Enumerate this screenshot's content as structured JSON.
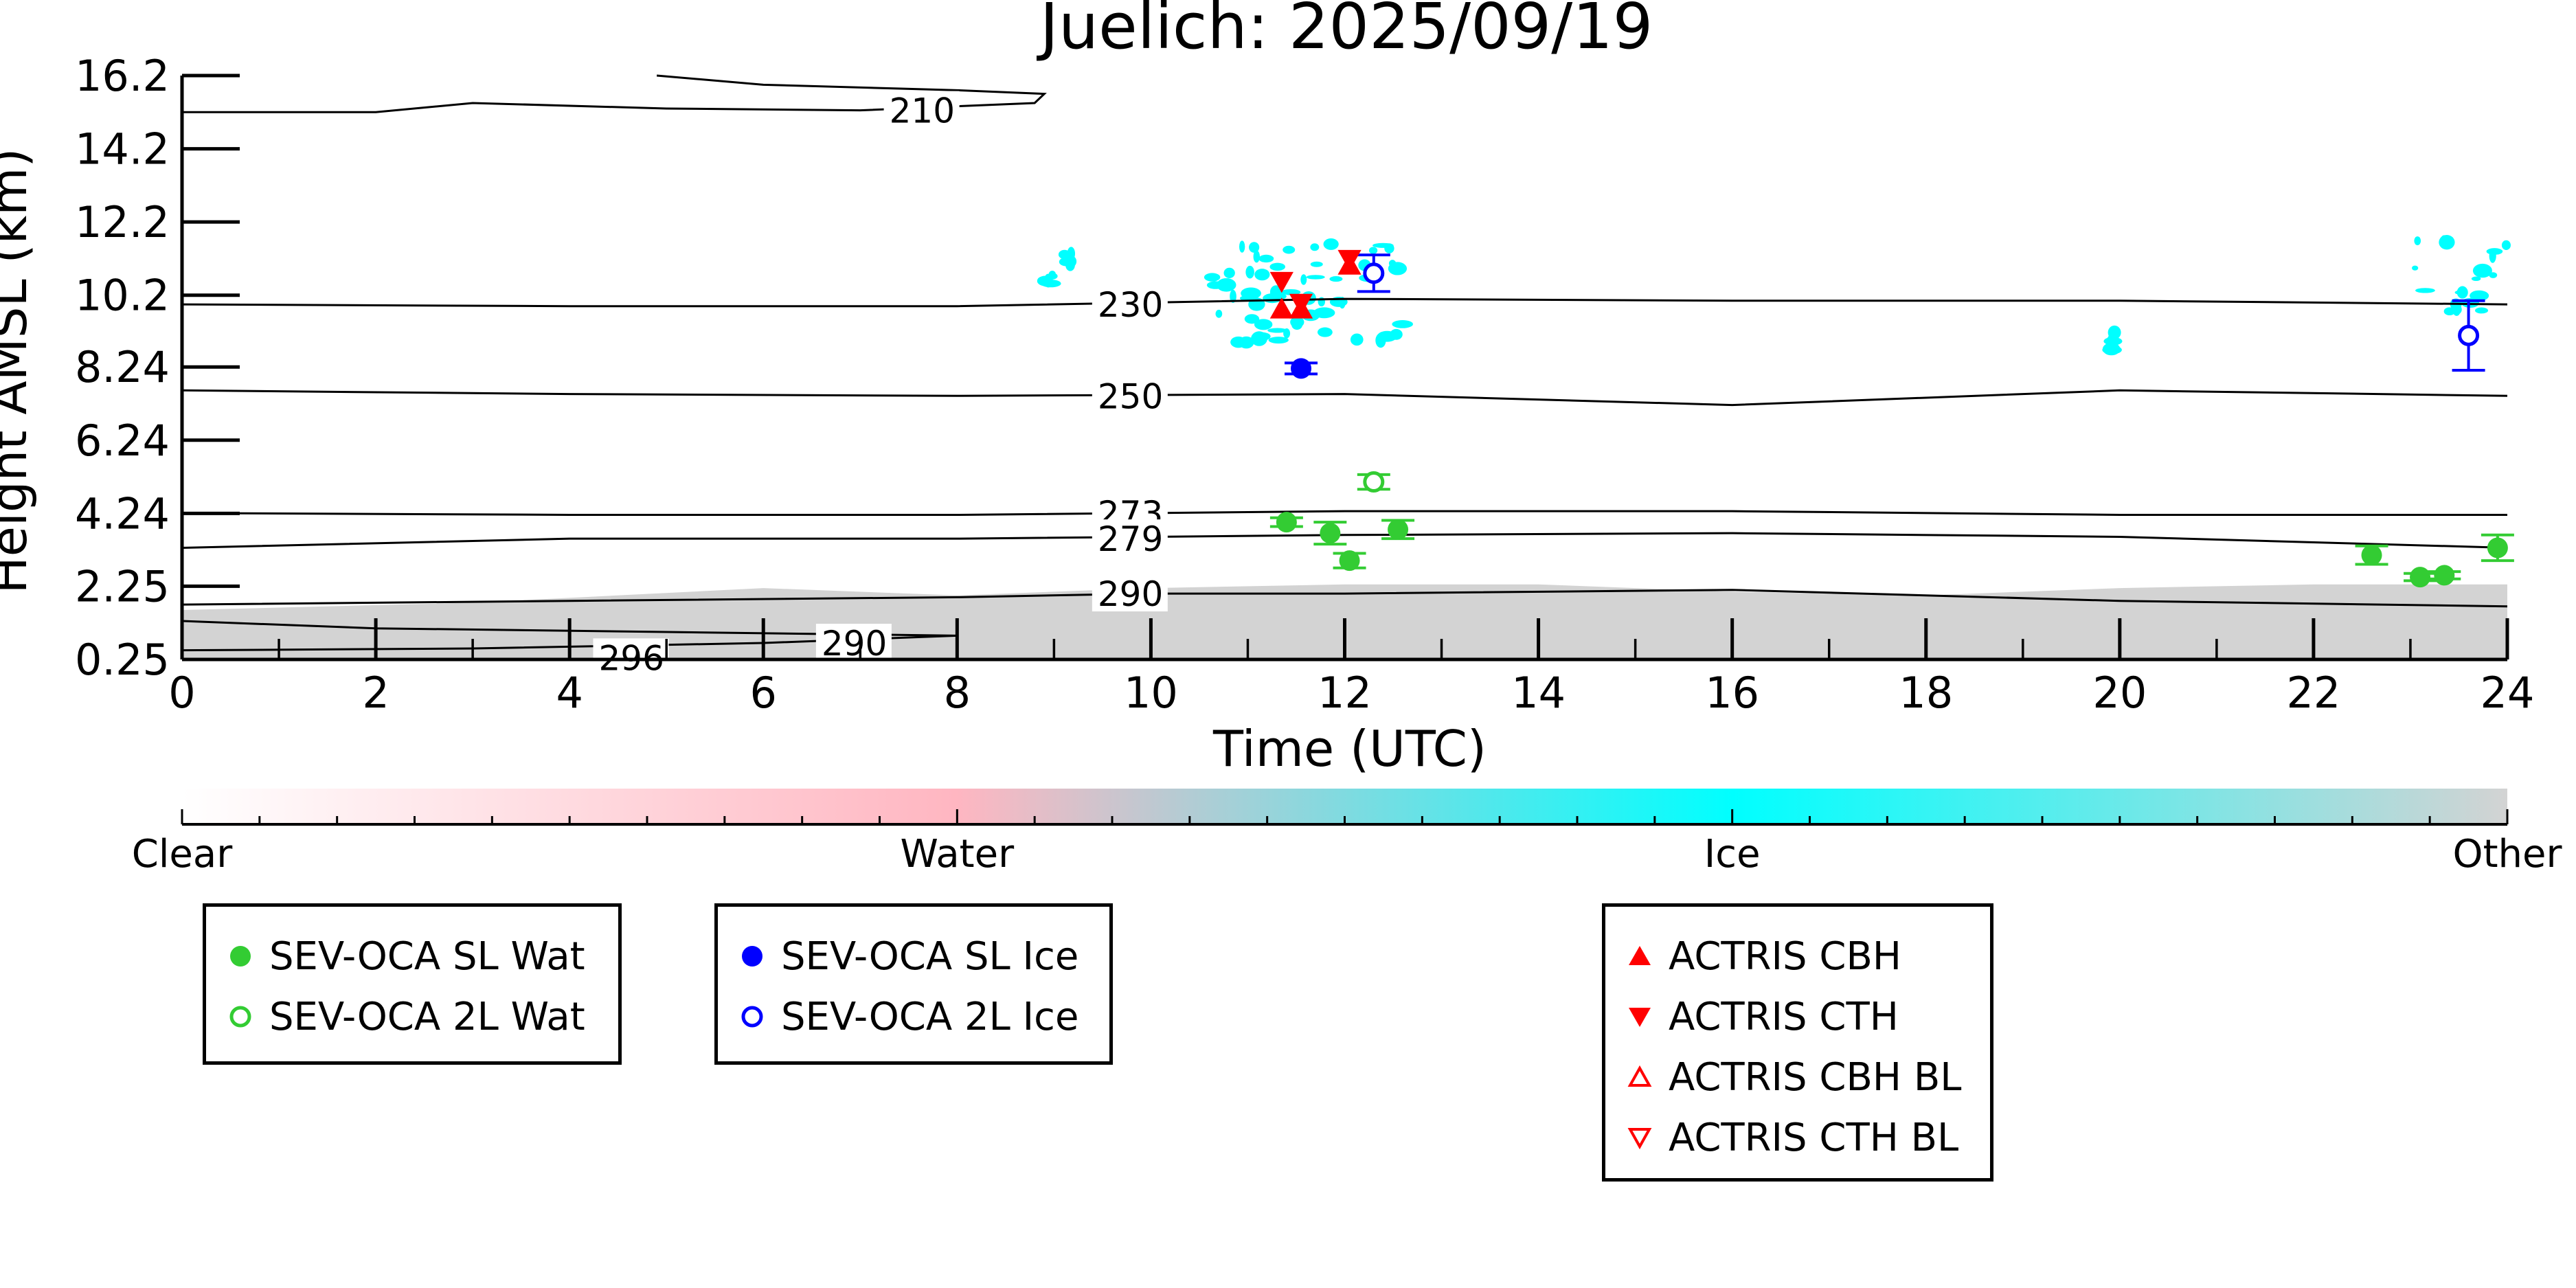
{
  "chart_data": {
    "type": "scatter",
    "title": "Juelich: 2025/09/19",
    "xlabel": "Time (UTC)",
    "ylabel": "Height AMSL (km)",
    "xlim": [
      0,
      24
    ],
    "ylim": [
      0.25,
      16.2
    ],
    "x_ticks": [
      0,
      2,
      4,
      6,
      8,
      10,
      12,
      14,
      16,
      18,
      20,
      22,
      24
    ],
    "x_tick_labels": [
      "0",
      "2",
      "4",
      "6",
      "8",
      "10",
      "12",
      "14",
      "16",
      "18",
      "20",
      "22",
      "24"
    ],
    "y_ticks": [
      0.25,
      2.25,
      4.24,
      6.24,
      8.24,
      10.2,
      12.2,
      14.2,
      16.2
    ],
    "y_tick_labels": [
      "0.25",
      "2.25",
      "4.24",
      "6.24",
      "8.24",
      "10.2",
      "12.2",
      "14.2",
      "16.2"
    ],
    "grid": false,
    "contours": [
      {
        "label": "210",
        "label_pos": [
          7.3,
          15.25
        ],
        "points": [
          [
            0,
            15.2
          ],
          [
            2,
            15.2
          ],
          [
            3,
            15.45
          ],
          [
            5,
            15.3
          ],
          [
            7,
            15.25
          ],
          [
            8.8,
            15.45
          ],
          [
            8.9,
            15.7
          ],
          [
            8,
            15.8
          ],
          [
            6,
            15.95
          ],
          [
            4.9,
            16.2
          ]
        ]
      },
      {
        "label": "230",
        "label_pos": [
          9.45,
          9.95
        ],
        "points": [
          [
            0,
            9.95
          ],
          [
            4,
            9.9
          ],
          [
            8,
            9.9
          ],
          [
            12,
            10.1
          ],
          [
            16,
            10.05
          ],
          [
            20,
            10.05
          ],
          [
            24,
            9.95
          ]
        ]
      },
      {
        "label": "250",
        "label_pos": [
          9.45,
          7.45
        ],
        "points": [
          [
            0,
            7.6
          ],
          [
            4,
            7.5
          ],
          [
            8,
            7.45
          ],
          [
            12,
            7.5
          ],
          [
            16,
            7.2
          ],
          [
            20,
            7.6
          ],
          [
            24,
            7.45
          ]
        ]
      },
      {
        "label": "273",
        "label_pos": [
          9.45,
          4.25
        ],
        "points": [
          [
            0,
            4.25
          ],
          [
            4,
            4.2
          ],
          [
            8,
            4.2
          ],
          [
            12,
            4.3
          ],
          [
            16,
            4.3
          ],
          [
            20,
            4.2
          ],
          [
            24,
            4.2
          ]
        ]
      },
      {
        "label": "279",
        "label_pos": [
          9.45,
          3.55
        ],
        "points": [
          [
            0,
            3.3
          ],
          [
            4,
            3.55
          ],
          [
            8,
            3.55
          ],
          [
            12,
            3.65
          ],
          [
            16,
            3.7
          ],
          [
            20,
            3.6
          ],
          [
            24,
            3.3
          ]
        ]
      },
      {
        "label": "290",
        "label_pos": [
          9.45,
          2.05
        ],
        "points": [
          [
            0,
            1.75
          ],
          [
            4,
            1.85
          ],
          [
            8,
            1.95
          ],
          [
            10,
            2.05
          ],
          [
            12,
            2.05
          ],
          [
            16,
            2.15
          ],
          [
            20,
            1.85
          ],
          [
            24,
            1.7
          ]
        ]
      },
      {
        "label": "290",
        "label_pos": [
          6.6,
          0.7
        ],
        "points": [
          [
            0,
            1.3
          ],
          [
            2,
            1.1
          ],
          [
            5,
            1.0
          ],
          [
            8,
            0.9
          ],
          [
            6,
            0.7
          ],
          [
            3,
            0.55
          ],
          [
            0,
            0.5
          ]
        ]
      },
      {
        "label": "296",
        "label_pos": [
          4.3,
          0.3
        ],
        "points": []
      }
    ],
    "series": [
      {
        "name": "SEV-OCA SL Wat",
        "color": "#33cc33",
        "marker": "filled-circle",
        "x": [
          11.4,
          11.85,
          12.05,
          12.55,
          22.6,
          23.1,
          23.35,
          23.9
        ],
        "y": [
          4.0,
          3.7,
          2.95,
          3.8,
          3.1,
          2.5,
          2.55,
          3.3
        ],
        "err": [
          0.12,
          0.3,
          0.2,
          0.25,
          0.25,
          0.1,
          0.1,
          0.35
        ]
      },
      {
        "name": "SEV-OCA 2L Wat",
        "color": "#33cc33",
        "marker": "open-circle",
        "x": [
          12.3
        ],
        "y": [
          5.1
        ],
        "err": [
          0.2
        ]
      },
      {
        "name": "SEV-OCA SL Ice",
        "color": "#0000ff",
        "marker": "filled-circle",
        "x": [
          11.55
        ],
        "y": [
          8.2
        ],
        "err": [
          0.15
        ]
      },
      {
        "name": "SEV-OCA 2L Ice",
        "color": "#0000ff",
        "marker": "open-circle",
        "x": [
          12.3,
          23.6
        ],
        "y": [
          10.8,
          9.1
        ],
        "err": [
          0.5,
          0.95
        ]
      },
      {
        "name": "ACTRIS CBH",
        "color": "#ff0000",
        "marker": "triangle-up",
        "x": [
          11.35,
          11.55,
          12.05
        ],
        "y": [
          9.8,
          9.8,
          11.0
        ],
        "err": []
      },
      {
        "name": "ACTRIS CTH",
        "color": "#ff0000",
        "marker": "triangle-down",
        "x": [
          11.35,
          11.55,
          12.05
        ],
        "y": [
          10.6,
          10.0,
          11.2
        ],
        "err": []
      },
      {
        "name": "ACTRIS CBH BL",
        "color": "#ff0000",
        "marker": "open-triangle-up",
        "x": [],
        "y": [],
        "err": []
      },
      {
        "name": "ACTRIS CTH BL",
        "color": "#ff0000",
        "marker": "open-triangle-down",
        "x": [],
        "y": [],
        "err": []
      }
    ],
    "classification": {
      "other_layer_top": [
        [
          0,
          1.6
        ],
        [
          3,
          1.8
        ],
        [
          6,
          2.2
        ],
        [
          8,
          2.0
        ],
        [
          10,
          2.2
        ],
        [
          12,
          2.3
        ],
        [
          14,
          2.3
        ],
        [
          16,
          2.1
        ],
        [
          18,
          2.0
        ],
        [
          20,
          2.2
        ],
        [
          22,
          2.3
        ],
        [
          24,
          2.3
        ]
      ],
      "ice_patches": [
        {
          "x": [
            10.6,
            12.6
          ],
          "y": [
            8.9,
            11.7
          ]
        },
        {
          "x": [
            9.1,
            9.25
          ],
          "y": [
            11.0,
            11.5
          ]
        },
        {
          "x": [
            8.9,
            9.0
          ],
          "y": [
            10.5,
            10.8
          ]
        },
        {
          "x": [
            19.9,
            19.95
          ],
          "y": [
            8.5,
            9.2
          ]
        },
        {
          "x": [
            23.0,
            24.0
          ],
          "y": [
            9.7,
            11.7
          ]
        }
      ]
    },
    "colorbar": {
      "labels": [
        "Clear",
        "Water",
        "Ice",
        "Other"
      ],
      "colors": [
        "#ffffff",
        "#ffb6c1",
        "#00ffff",
        "#d3d3d3"
      ]
    },
    "legends": [
      {
        "entries": [
          "SEV-OCA SL Wat",
          "SEV-OCA 2L Wat"
        ]
      },
      {
        "entries": [
          "SEV-OCA SL Ice",
          "SEV-OCA 2L Ice"
        ]
      },
      {
        "entries": [
          "ACTRIS CBH",
          "ACTRIS CTH",
          "ACTRIS CBH BL",
          "ACTRIS CTH BL"
        ]
      }
    ]
  }
}
